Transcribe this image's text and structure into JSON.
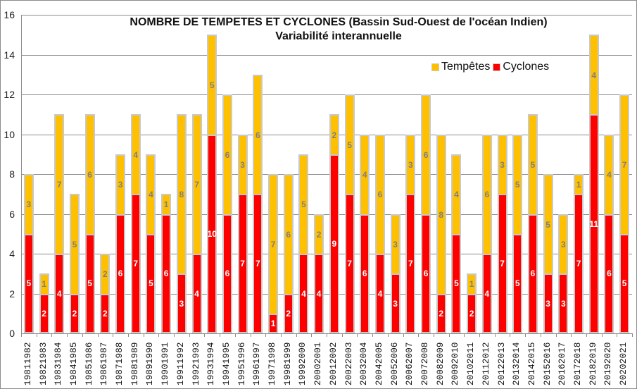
{
  "chart_data": {
    "type": "bar",
    "stacked": true,
    "title": "NOMBRE DE TEMPETES ET CYCLONES (Bassin Sud-Ouest de l'océan Indien)",
    "subtitle": "Variabilité interannuelle",
    "xlabel": "",
    "ylabel": "",
    "ylim": [
      0,
      16
    ],
    "yticks": [
      0,
      2,
      4,
      6,
      8,
      10,
      12,
      14,
      16
    ],
    "grid": true,
    "legend_position": "top-right",
    "categories": [
      "19811982",
      "19821983",
      "19831984",
      "19841985",
      "19851986",
      "19861987",
      "19871988",
      "19881989",
      "19891990",
      "19901991",
      "19911992",
      "19921993",
      "19931994",
      "19941995",
      "19951996",
      "19961997",
      "19971998",
      "19981999",
      "19992000",
      "20002001",
      "20012002",
      "20022003",
      "20032004",
      "20042005",
      "20052006",
      "20062007",
      "20072008",
      "20082009",
      "20092010",
      "20102011",
      "20112012",
      "20122013",
      "20132014",
      "20142015",
      "20152016",
      "20162017",
      "20172018",
      "20182019",
      "20192020",
      "20202021"
    ],
    "series": [
      {
        "name": "Cyclones",
        "color": "#ff0000",
        "values": [
          5,
          2,
          4,
          2,
          5,
          2,
          6,
          7,
          5,
          6,
          3,
          4,
          10,
          6,
          7,
          7,
          1,
          2,
          4,
          4,
          9,
          7,
          6,
          4,
          3,
          7,
          6,
          2,
          5,
          2,
          4,
          7,
          5,
          6,
          3,
          3,
          7,
          11,
          6,
          5
        ]
      },
      {
        "name": "Tempêtes",
        "color": "#ffc000",
        "values": [
          3,
          1,
          7,
          5,
          6,
          2,
          3,
          4,
          4,
          1,
          8,
          7,
          5,
          6,
          3,
          6,
          7,
          6,
          5,
          2,
          2,
          5,
          4,
          6,
          3,
          3,
          6,
          8,
          4,
          1,
          6,
          3,
          5,
          5,
          5,
          3,
          1,
          4,
          4,
          7
        ]
      }
    ]
  },
  "title": {
    "line1": "NOMBRE DE TEMPETES ET CYCLONES (Bassin Sud-Ouest de l'océan Indien)",
    "line2": "Variabilité interannuelle"
  },
  "legend": {
    "tempetes": "Tempêtes",
    "cyclones": "Cyclones"
  }
}
